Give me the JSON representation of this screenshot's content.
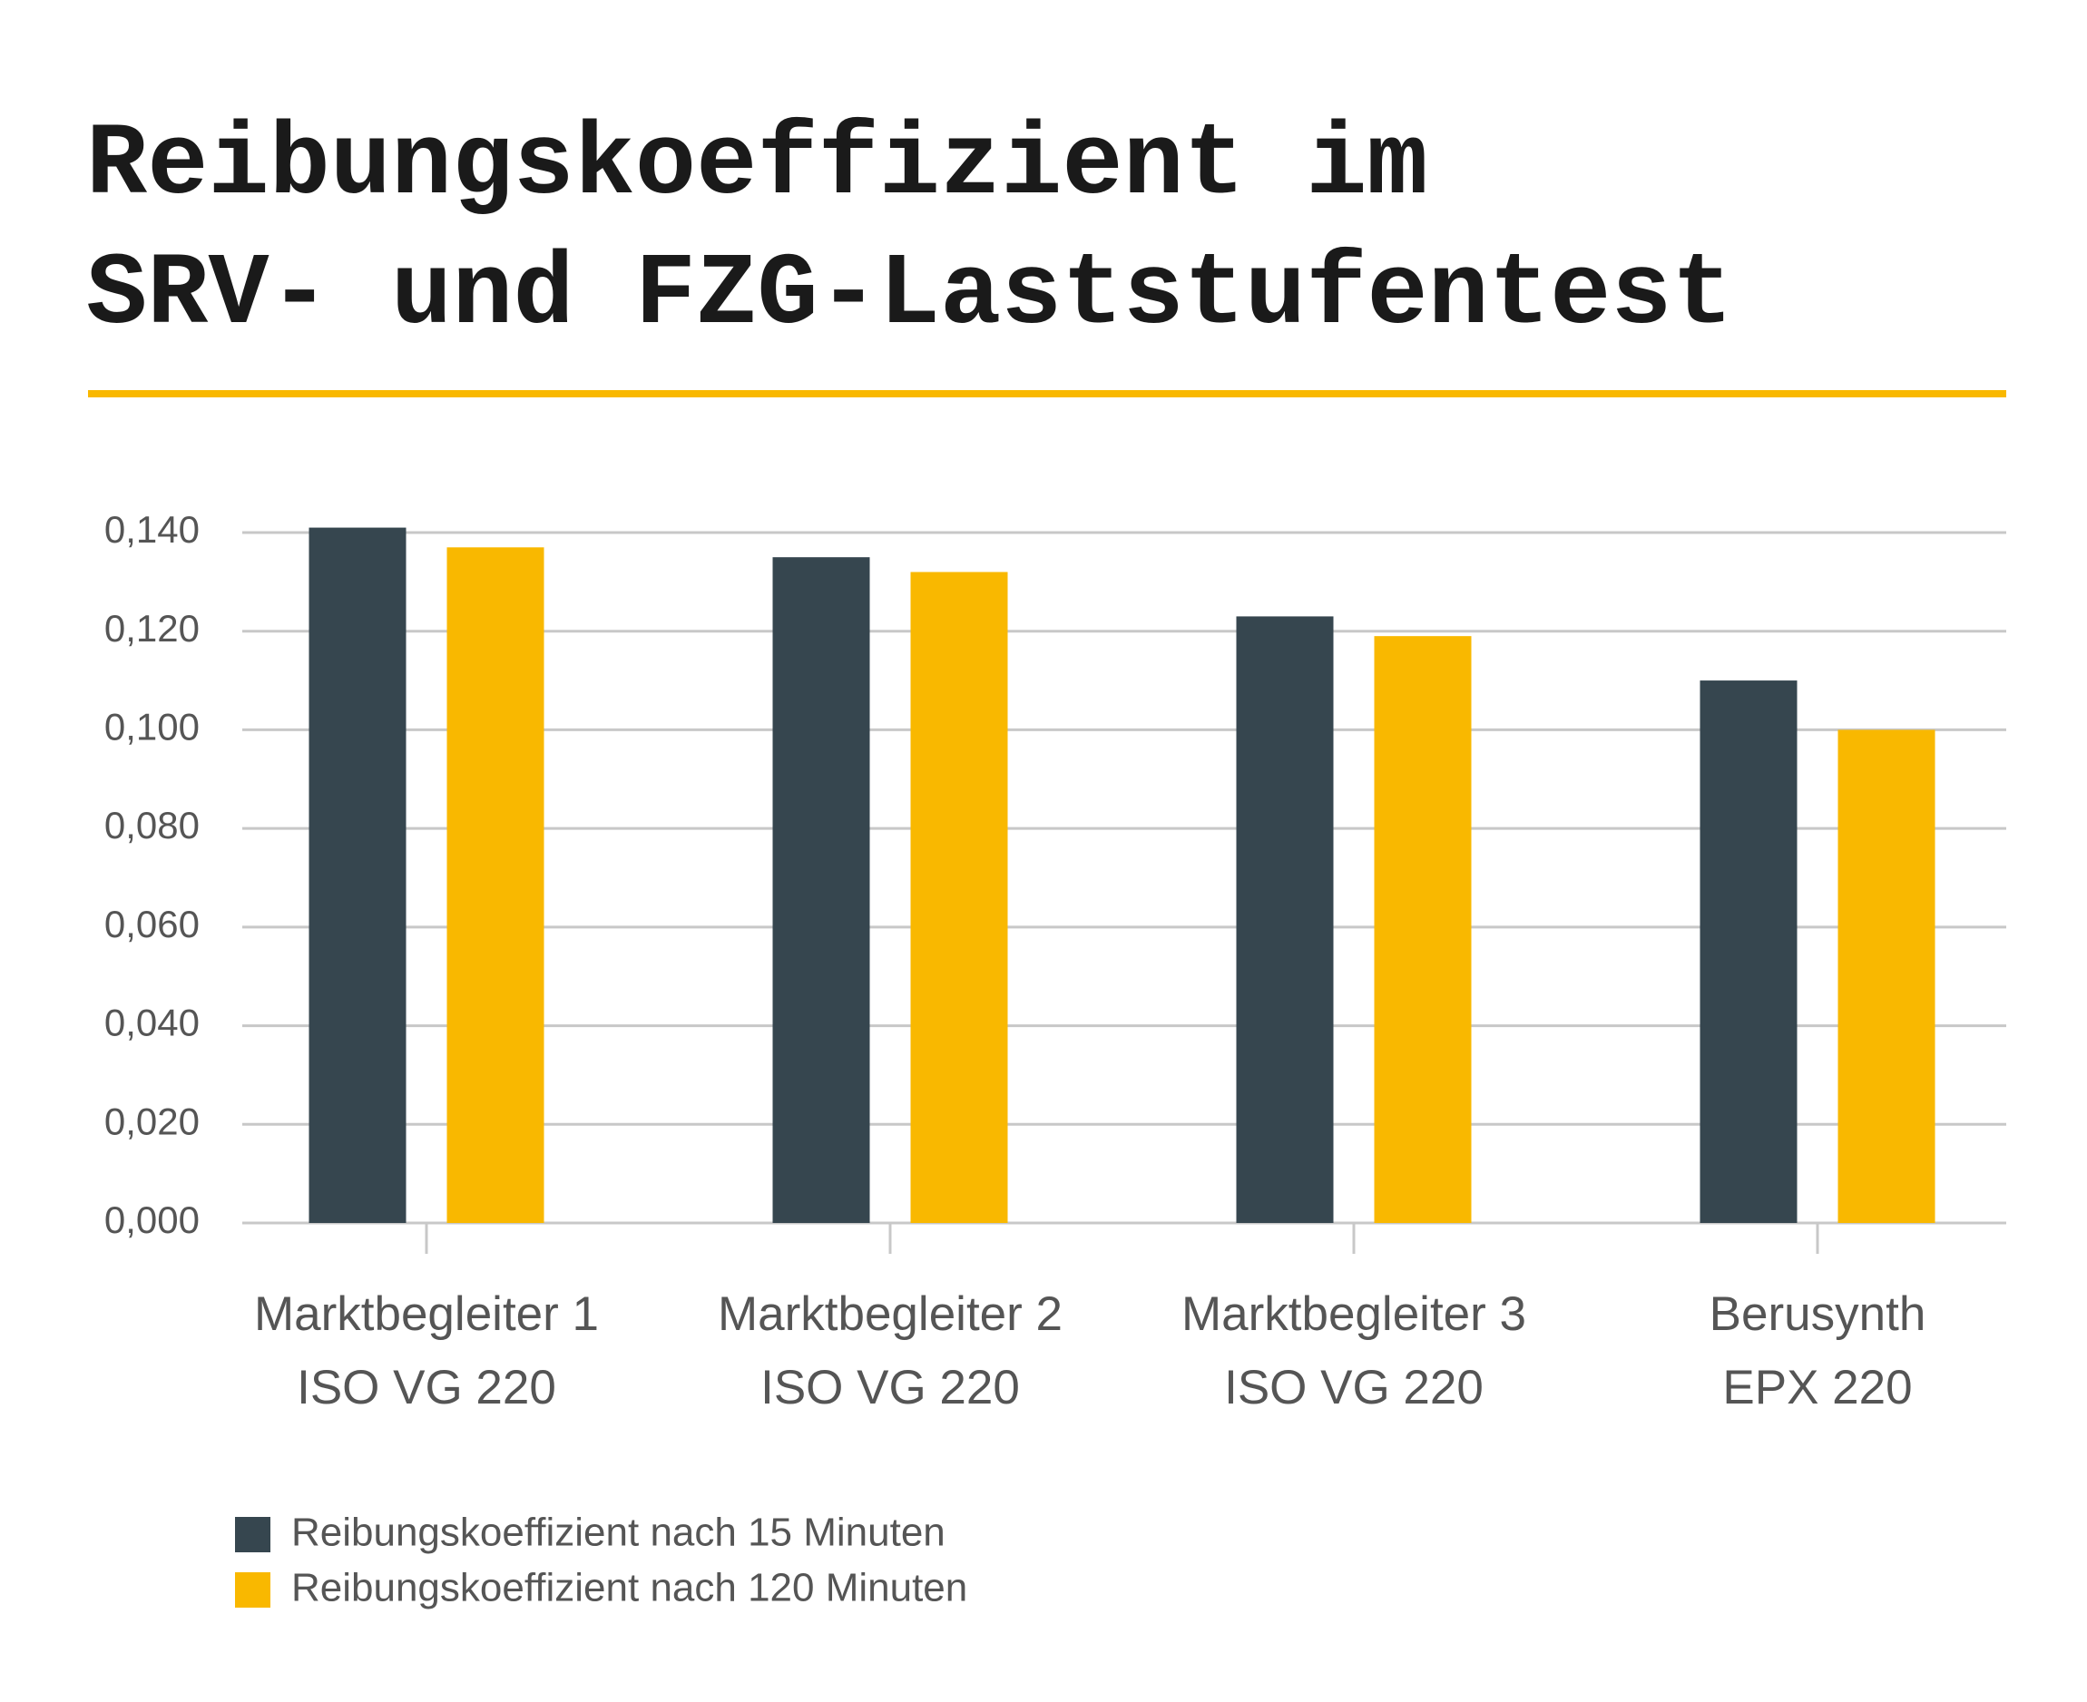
{
  "chart_data": {
    "type": "bar",
    "title": [
      "Reibungskoeffizient im",
      "SRV- und FZG-Laststufentest"
    ],
    "categories": [
      [
        "Marktbegleiter 1",
        "ISO VG 220"
      ],
      [
        "Marktbegleiter 2",
        "ISO VG 220"
      ],
      [
        "Marktbegleiter 3",
        "ISO VG 220"
      ],
      [
        "Berusynth",
        "EPX 220"
      ]
    ],
    "series": [
      {
        "name": "Reibungskoeffizient nach 15 Minuten",
        "color": "#36464f",
        "values": [
          0.141,
          0.135,
          0.123,
          0.11
        ]
      },
      {
        "name": "Reibungskoeffizient nach 120 Minuten",
        "color": "#f9b800",
        "values": [
          0.137,
          0.132,
          0.119,
          0.1
        ]
      }
    ],
    "ylim": [
      0,
      0.14
    ],
    "yticks": [
      {
        "value": 0,
        "label": "0,000"
      },
      {
        "value": 0.02,
        "label": "0,020"
      },
      {
        "value": 0.04,
        "label": "0,040"
      },
      {
        "value": 0.06,
        "label": "0,060"
      },
      {
        "value": 0.08,
        "label": "0,080"
      },
      {
        "value": 0.1,
        "label": "0,100"
      },
      {
        "value": 0.12,
        "label": "0,120"
      },
      {
        "value": 0.14,
        "label": "0,140"
      }
    ],
    "grid": true
  }
}
